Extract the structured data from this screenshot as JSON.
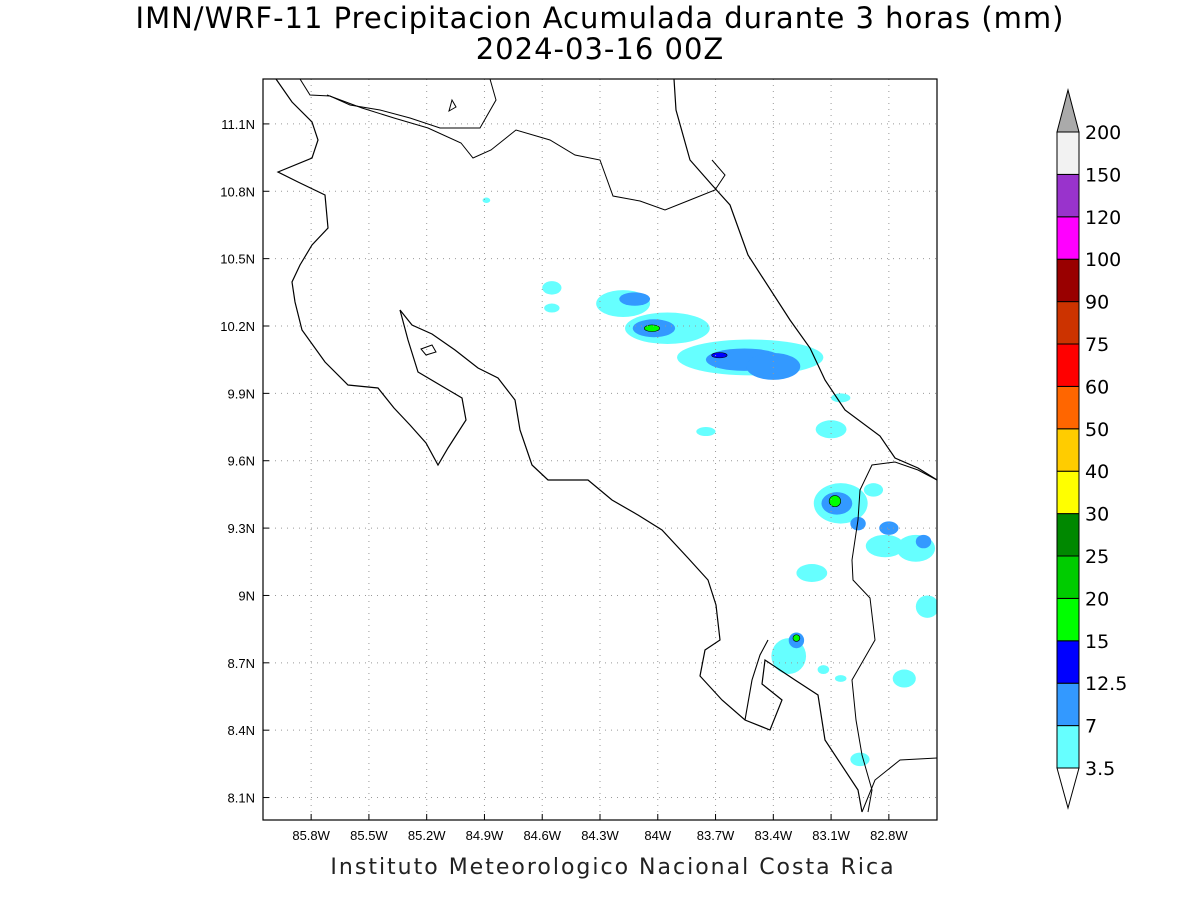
{
  "title": "IMN/WRF-11 Precipitacion Acumulada durante 3 horas (mm)",
  "subtitle": "2024-03-16 00Z",
  "credit": "Instituto Meteorologico Nacional Costa Rica",
  "map": {
    "lon_range": [
      -86.05,
      -82.55
    ],
    "lat_range": [
      8.0,
      11.3
    ],
    "lon_ticks": [
      {
        "value": -85.8,
        "label": "85.8W"
      },
      {
        "value": -85.5,
        "label": "85.5W"
      },
      {
        "value": -85.2,
        "label": "85.2W"
      },
      {
        "value": -84.9,
        "label": "84.9W"
      },
      {
        "value": -84.6,
        "label": "84.6W"
      },
      {
        "value": -84.3,
        "label": "84.3W"
      },
      {
        "value": -84.0,
        "label": "84W"
      },
      {
        "value": -83.7,
        "label": "83.7W"
      },
      {
        "value": -83.4,
        "label": "83.4W"
      },
      {
        "value": -83.1,
        "label": "83.1W"
      },
      {
        "value": -82.8,
        "label": "82.8W"
      }
    ],
    "lat_ticks": [
      {
        "value": 11.1,
        "label": "11.1N"
      },
      {
        "value": 10.8,
        "label": "10.8N"
      },
      {
        "value": 10.5,
        "label": "10.5N"
      },
      {
        "value": 10.2,
        "label": "10.2N"
      },
      {
        "value": 9.9,
        "label": "9.9N"
      },
      {
        "value": 9.6,
        "label": "9.6N"
      },
      {
        "value": 9.3,
        "label": "9.3N"
      },
      {
        "value": 9.0,
        "label": "9N"
      },
      {
        "value": 8.7,
        "label": "8.7N"
      },
      {
        "value": 8.4,
        "label": "8.4N"
      },
      {
        "value": 8.1,
        "label": "8.1N"
      }
    ],
    "grid": true
  },
  "colorbar": {
    "labels": [
      "3.5",
      "7",
      "12.5",
      "15",
      "20",
      "25",
      "30",
      "40",
      "50",
      "60",
      "75",
      "90",
      "100",
      "120",
      "150",
      "200"
    ],
    "colors": [
      "#66ffff",
      "#3399ff",
      "#0000ff",
      "#00ff00",
      "#00cc00",
      "#008800",
      "#ffff00",
      "#ffcc00",
      "#ff6600",
      "#ff0000",
      "#cc3300",
      "#990000",
      "#ff00ff",
      "#9933cc",
      "#f2f2f2",
      "#aaaaaa"
    ],
    "under_color": "#ffffff",
    "over_color": "#aaaaaa"
  },
  "precip_cells": [
    {
      "lon": -84.89,
      "lat": 10.76,
      "rx": 0.02,
      "ry": 0.012,
      "level": 0
    },
    {
      "lon": -84.55,
      "lat": 10.37,
      "rx": 0.05,
      "ry": 0.03,
      "level": 0
    },
    {
      "lon": -84.55,
      "lat": 10.28,
      "rx": 0.04,
      "ry": 0.02,
      "level": 0
    },
    {
      "lon": -84.18,
      "lat": 10.3,
      "rx": 0.14,
      "ry": 0.06,
      "level": 0
    },
    {
      "lon": -84.12,
      "lat": 10.32,
      "rx": 0.08,
      "ry": 0.03,
      "level": 1
    },
    {
      "lon": -83.95,
      "lat": 10.19,
      "rx": 0.22,
      "ry": 0.07,
      "level": 0
    },
    {
      "lon": -84.02,
      "lat": 10.19,
      "rx": 0.11,
      "ry": 0.04,
      "level": 1
    },
    {
      "lon": -84.03,
      "lat": 10.19,
      "rx": 0.04,
      "ry": 0.015,
      "level": 3
    },
    {
      "lon": -83.52,
      "lat": 10.06,
      "rx": 0.38,
      "ry": 0.08,
      "level": 0
    },
    {
      "lon": -83.55,
      "lat": 10.05,
      "rx": 0.2,
      "ry": 0.05,
      "level": 1
    },
    {
      "lon": -83.4,
      "lat": 10.02,
      "rx": 0.14,
      "ry": 0.06,
      "level": 1
    },
    {
      "lon": -83.68,
      "lat": 10.07,
      "rx": 0.04,
      "ry": 0.012,
      "level": 2
    },
    {
      "lon": -83.75,
      "lat": 9.73,
      "rx": 0.05,
      "ry": 0.02,
      "level": 0
    },
    {
      "lon": -83.1,
      "lat": 9.74,
      "rx": 0.08,
      "ry": 0.04,
      "level": 0
    },
    {
      "lon": -83.05,
      "lat": 9.88,
      "rx": 0.05,
      "ry": 0.02,
      "level": 0
    },
    {
      "lon": -83.05,
      "lat": 9.41,
      "rx": 0.14,
      "ry": 0.09,
      "level": 0
    },
    {
      "lon": -83.07,
      "lat": 9.41,
      "rx": 0.08,
      "ry": 0.05,
      "level": 1
    },
    {
      "lon": -83.08,
      "lat": 9.42,
      "rx": 0.03,
      "ry": 0.025,
      "level": 3
    },
    {
      "lon": -82.96,
      "lat": 9.32,
      "rx": 0.04,
      "ry": 0.03,
      "level": 1
    },
    {
      "lon": -82.88,
      "lat": 9.47,
      "rx": 0.05,
      "ry": 0.03,
      "level": 0
    },
    {
      "lon": -82.82,
      "lat": 9.22,
      "rx": 0.1,
      "ry": 0.05,
      "level": 0
    },
    {
      "lon": -82.8,
      "lat": 9.3,
      "rx": 0.05,
      "ry": 0.03,
      "level": 1
    },
    {
      "lon": -82.66,
      "lat": 9.21,
      "rx": 0.1,
      "ry": 0.06,
      "level": 0
    },
    {
      "lon": -82.62,
      "lat": 9.24,
      "rx": 0.04,
      "ry": 0.03,
      "level": 1
    },
    {
      "lon": -82.6,
      "lat": 8.95,
      "rx": 0.06,
      "ry": 0.05,
      "level": 0
    },
    {
      "lon": -83.2,
      "lat": 9.1,
      "rx": 0.08,
      "ry": 0.04,
      "level": 0
    },
    {
      "lon": -83.32,
      "lat": 8.73,
      "rx": 0.09,
      "ry": 0.08,
      "level": 0
    },
    {
      "lon": -83.28,
      "lat": 8.8,
      "rx": 0.04,
      "ry": 0.035,
      "level": 1
    },
    {
      "lon": -83.28,
      "lat": 8.81,
      "rx": 0.018,
      "ry": 0.015,
      "level": 3
    },
    {
      "lon": -83.14,
      "lat": 8.67,
      "rx": 0.03,
      "ry": 0.02,
      "level": 0
    },
    {
      "lon": -82.72,
      "lat": 8.63,
      "rx": 0.06,
      "ry": 0.04,
      "level": 0
    },
    {
      "lon": -82.95,
      "lat": 8.27,
      "rx": 0.05,
      "ry": 0.03,
      "level": 0
    },
    {
      "lon": -83.05,
      "lat": 8.63,
      "rx": 0.03,
      "ry": 0.015,
      "level": 0
    }
  ]
}
